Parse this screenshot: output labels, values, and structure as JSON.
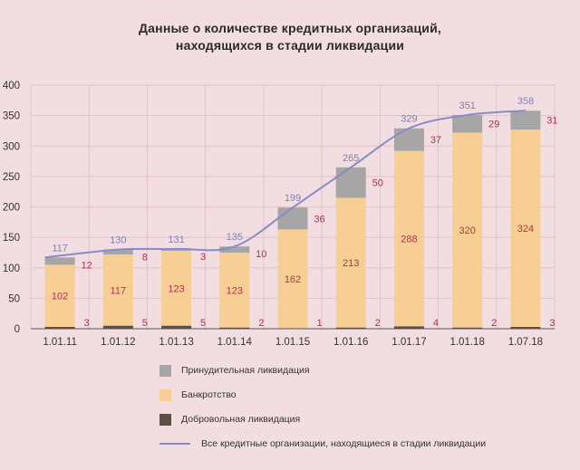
{
  "title_line1": "Данные о количестве кредитных организаций,",
  "title_line2": "находящихся в стадии ликвидации",
  "legend": {
    "forced": "Принудительная ликвидация",
    "bankruptcy": "Банкротство",
    "voluntary": "Добровольная ликвидация",
    "total": "Все кредитные организации, находящиеся в стадии ликвидации"
  },
  "colors": {
    "forced": "#a6a6a6",
    "bankruptcy": "#f7cf94",
    "voluntary": "#5b4f47",
    "total_line": "#8a8ac8",
    "total_label": "#8080b8",
    "segment_label": "#b03054",
    "background": "#f2dde1",
    "grid": "#e2c3c9"
  },
  "chart_data": {
    "type": "bar",
    "stacked": true,
    "categories": [
      "1.01.11",
      "1.01.12",
      "1.01.13",
      "1.01.14",
      "1.01.15",
      "1.01.16",
      "1.01.17",
      "1.01.18",
      "1.07.18"
    ],
    "ylim": [
      0,
      400
    ],
    "yticks": [
      0,
      50,
      100,
      150,
      200,
      250,
      300,
      350,
      400
    ],
    "grid": true,
    "legend_position": "bottom",
    "series": [
      {
        "name": "Добровольная ликвидация",
        "values": [
          3,
          5,
          5,
          2,
          1,
          2,
          4,
          2,
          3
        ]
      },
      {
        "name": "Банкротство",
        "values": [
          102,
          117,
          123,
          123,
          162,
          213,
          288,
          320,
          324
        ]
      },
      {
        "name": "Принудительная ликвидация",
        "values": [
          12,
          8,
          3,
          10,
          36,
          50,
          37,
          29,
          31
        ]
      }
    ],
    "line": {
      "name": "Все кредитные организации, находящиеся в стадии ликвидации",
      "values": [
        117,
        130,
        131,
        135,
        199,
        265,
        329,
        351,
        358
      ]
    }
  }
}
